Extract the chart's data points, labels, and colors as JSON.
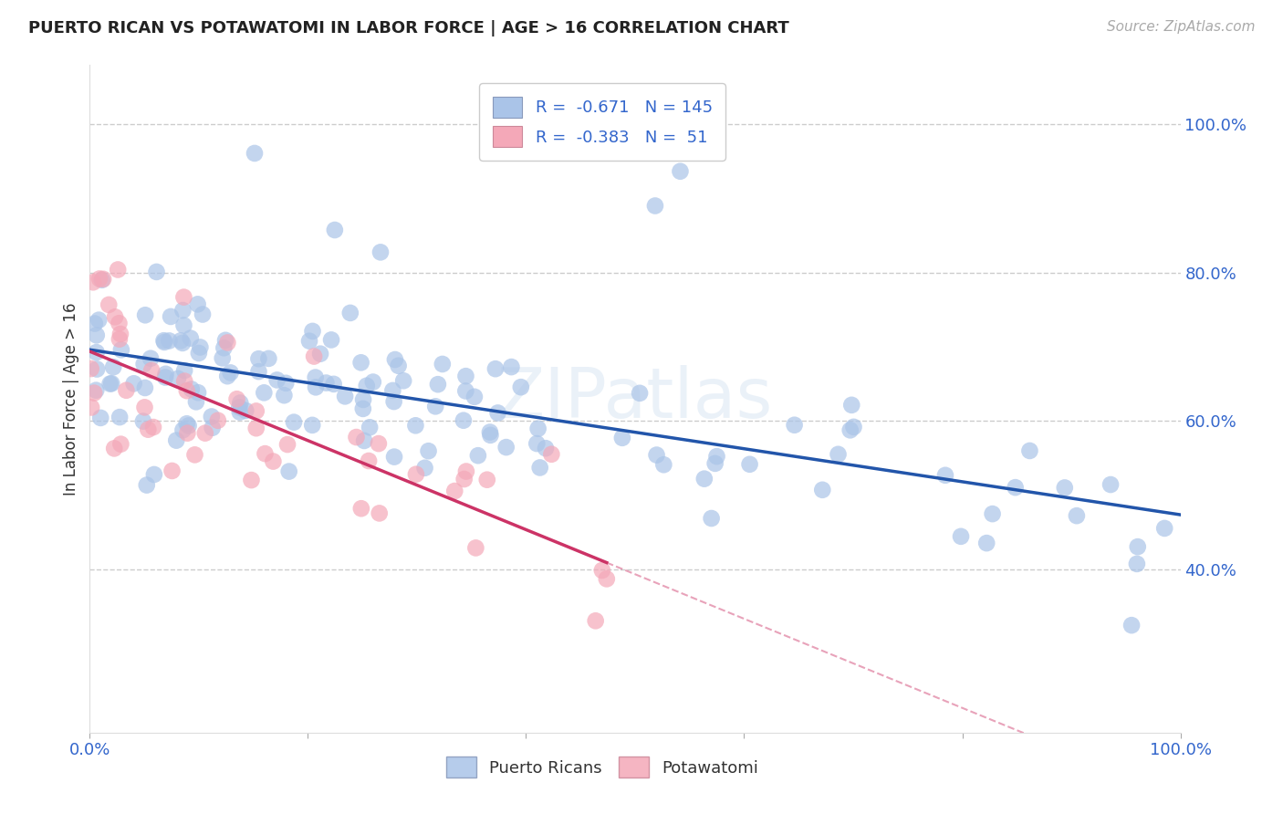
{
  "title": "PUERTO RICAN VS POTAWATOMI IN LABOR FORCE | AGE > 16 CORRELATION CHART",
  "source_text": "Source: ZipAtlas.com",
  "ylabel": "In Labor Force | Age > 16",
  "xlim": [
    0.0,
    1.0
  ],
  "ylim": [
    0.18,
    1.08
  ],
  "x_ticks": [
    0.0,
    0.2,
    0.4,
    0.6,
    0.8,
    1.0
  ],
  "x_tick_labels": [
    "0.0%",
    "",
    "",
    "",
    "",
    "100.0%"
  ],
  "y_tick_labels_right": [
    "100.0%",
    "80.0%",
    "60.0%",
    "40.0%"
  ],
  "y_tick_positions_right": [
    1.0,
    0.8,
    0.6,
    0.4
  ],
  "background_color": "#ffffff",
  "grid_color": "#cccccc",
  "blue_R": -0.671,
  "blue_N": 145,
  "pink_R": -0.383,
  "pink_N": 51,
  "blue_color": "#aac4e8",
  "pink_color": "#f4a8b8",
  "blue_line_color": "#2255aa",
  "pink_line_color": "#cc3366",
  "blue_seed": 7,
  "pink_seed": 13
}
